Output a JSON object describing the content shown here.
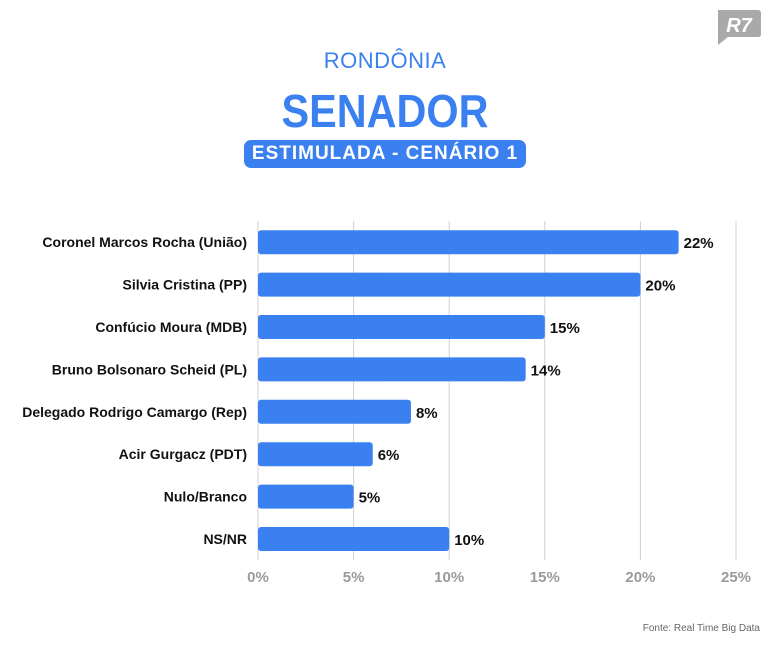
{
  "header": {
    "region": "RONDÔNIA",
    "title": "SENADOR",
    "badge": "ESTIMULADA - CENÁRIO 1"
  },
  "logo": {
    "text": "R7"
  },
  "source": "Fonte: Real Time Big Data",
  "colors": {
    "bar": "#3b80f0",
    "grid": "#d0d0d0",
    "tick": "#9a9a9a"
  },
  "chart_data": {
    "type": "bar",
    "orientation": "horizontal",
    "title": "SENADOR",
    "subtitle": "ESTIMULADA - CENÁRIO 1",
    "categories": [
      "Coronel Marcos Rocha (União)",
      "Silvia Cristina (PP)",
      "Confúcio Moura (MDB)",
      "Bruno Bolsonaro Scheid (PL)",
      "Delegado Rodrigo Camargo (Rep)",
      "Acir Gurgacz (PDT)",
      "Nulo/Branco",
      "NS/NR"
    ],
    "values": [
      22,
      20,
      15,
      14,
      8,
      6,
      5,
      10
    ],
    "data_labels": [
      "22%",
      "20%",
      "15%",
      "14%",
      "8%",
      "6%",
      "5%",
      "10%"
    ],
    "xlim": [
      0,
      25
    ],
    "xticks": [
      0,
      5,
      10,
      15,
      20,
      25
    ],
    "xtick_labels": [
      "0%",
      "5%",
      "10%",
      "15%",
      "20%",
      "25%"
    ],
    "grid": true,
    "xlabel": "",
    "ylabel": ""
  }
}
